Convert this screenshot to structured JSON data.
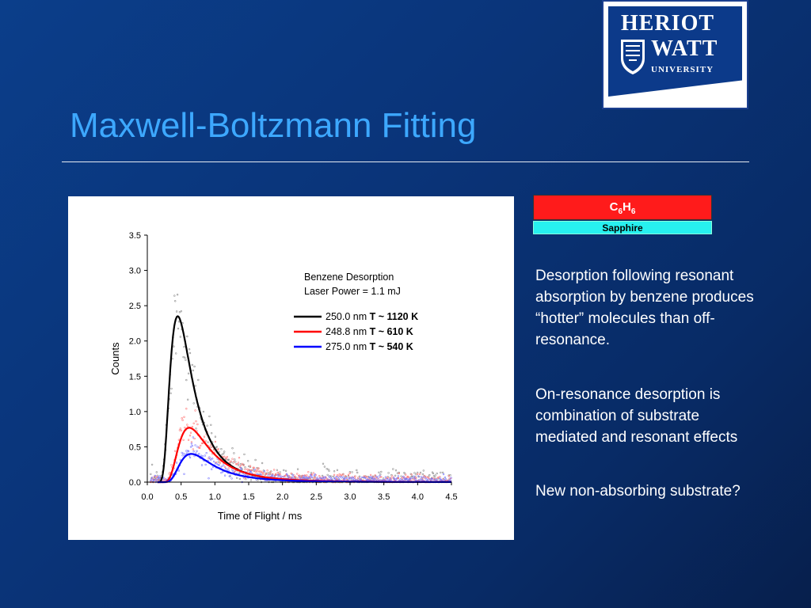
{
  "slide": {
    "title": "Maxwell-Boltzmann Fitting"
  },
  "logo": {
    "line1": "HERIOT",
    "line2": "WATT",
    "line3": "UNIVERSITY"
  },
  "layer_stack": {
    "top_label_main": "C",
    "top_sub1": "6",
    "top_mid": "H",
    "top_sub2": "6",
    "bottom_label": "Sapphire"
  },
  "paragraphs": [
    "Desorption following resonant absorption by benzene produces “hotter” molecules than off-resonance.",
    "On-resonance desorption is combination of substrate mediated and resonant effects",
    "New non-absorbing substrate?"
  ],
  "chart_data": {
    "type": "scatter",
    "xlabel": "Time of Flight / ms",
    "ylabel": "Counts",
    "xlim": [
      0,
      4.5
    ],
    "ylim": [
      0,
      3.5
    ],
    "x_ticks": [
      "0.0",
      "0.5",
      "1.0",
      "1.5",
      "2.0",
      "2.5",
      "3.0",
      "3.5",
      "4.0",
      "4.5"
    ],
    "y_ticks": [
      "0.0",
      "0.5",
      "1.0",
      "1.5",
      "2.0",
      "2.5",
      "3.0",
      "3.5"
    ],
    "annotation_line1": "Benzene Desorption",
    "annotation_line2": "Laser Power = 1.1 mJ",
    "series": [
      {
        "name_prefix": "250.0 nm ",
        "name_bold": "T ~ 1120 K",
        "color": "#000000",
        "peak_x": 0.45,
        "peak_y": 2.35
      },
      {
        "name_prefix": "248.8 nm ",
        "name_bold": "T ~ 610 K",
        "color": "#ff0000",
        "peak_x": 0.62,
        "peak_y": 0.77
      },
      {
        "name_prefix": "275.0 nm ",
        "name_bold": "T ~ 540 K",
        "color": "#0000ff",
        "peak_x": 0.65,
        "peak_y": 0.4
      }
    ],
    "legend_position": "top-right",
    "grid": false
  }
}
